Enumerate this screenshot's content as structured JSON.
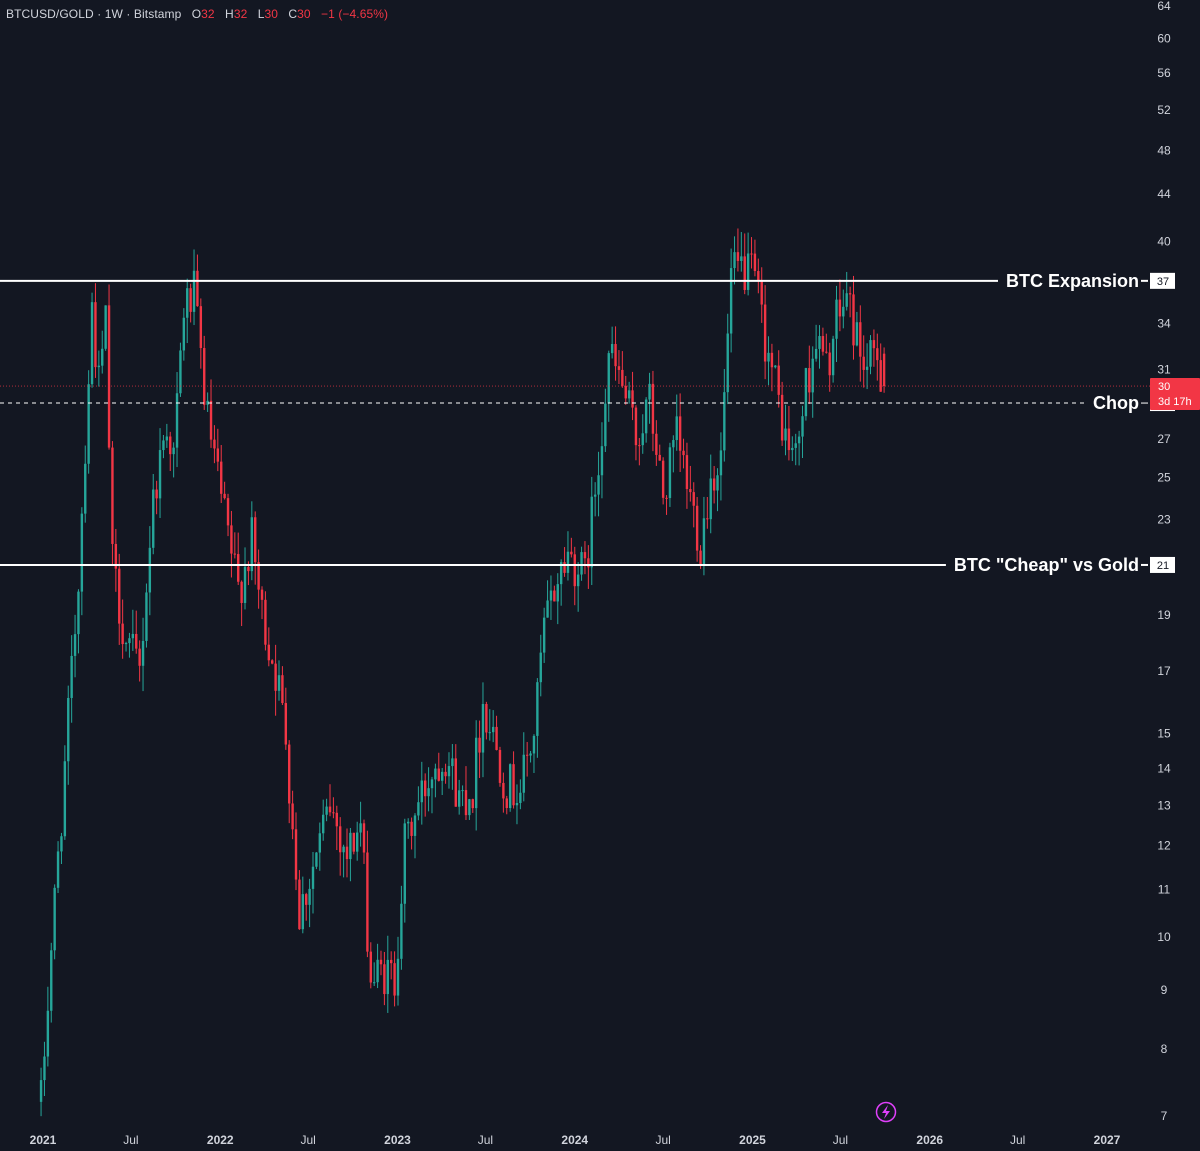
{
  "header": {
    "symbol": "BTCUSD/GOLD",
    "interval": "1W",
    "exchange": "Bitstamp",
    "open_label": "O",
    "open_value": "32",
    "high_label": "H",
    "high_value": "32",
    "low_label": "L",
    "low_value": "30",
    "close_label": "C",
    "close_value": "30",
    "change": "−1 (−4.65%)"
  },
  "colors": {
    "background": "#131722",
    "up": "#26a69a",
    "down": "#f23645",
    "text": "#d1d4dc",
    "level_line": "#ffffff",
    "price_line": "#f23645"
  },
  "chart_data": {
    "type": "candlestick",
    "timeframe": "1W",
    "y_scale": "log",
    "ylim": [
      7,
      64
    ],
    "y_ticks": [
      7,
      8,
      9,
      10,
      11,
      12,
      13,
      14,
      15,
      17,
      19,
      23,
      25,
      27,
      31,
      34,
      40,
      44,
      48,
      52,
      56,
      60,
      64
    ],
    "x_ticks": [
      {
        "label": "2021",
        "date": "2021-01-01"
      },
      {
        "label": "Jul",
        "date": "2021-07-01"
      },
      {
        "label": "2022",
        "date": "2022-01-01"
      },
      {
        "label": "Jul",
        "date": "2022-07-01"
      },
      {
        "label": "2023",
        "date": "2023-01-01"
      },
      {
        "label": "Jul",
        "date": "2023-07-01"
      },
      {
        "label": "2024",
        "date": "2024-01-01"
      },
      {
        "label": "Jul",
        "date": "2024-07-01"
      },
      {
        "label": "2025",
        "date": "2025-01-01"
      },
      {
        "label": "Jul",
        "date": "2025-07-01"
      },
      {
        "label": "2026",
        "date": "2026-01-01"
      },
      {
        "label": "Jul",
        "date": "2026-07-01"
      },
      {
        "label": "2027",
        "date": "2027-01-01"
      }
    ],
    "levels": [
      {
        "name": "BTC Expansion",
        "value": 37,
        "value_label": "37",
        "style": "solid"
      },
      {
        "name": "Chop",
        "value": 29,
        "value_label": "29",
        "style": "dashed"
      },
      {
        "name": "BTC \"Cheap\" vs Gold",
        "value": 21,
        "value_label": "21",
        "style": "solid"
      }
    ],
    "last_price": {
      "value": 30,
      "value_label": "30",
      "countdown": "3d 17h"
    },
    "close_path": [
      [
        "2020-12-28",
        7.2
      ],
      [
        "2021-01-18",
        9.8
      ],
      [
        "2021-02-15",
        14
      ],
      [
        "2021-03-15",
        20.5
      ],
      [
        "2021-04-12",
        35
      ],
      [
        "2021-04-26",
        30
      ],
      [
        "2021-05-10",
        34
      ],
      [
        "2021-05-24",
        21
      ],
      [
        "2021-06-21",
        18
      ],
      [
        "2021-07-19",
        17
      ],
      [
        "2021-08-16",
        24
      ],
      [
        "2021-09-13",
        28
      ],
      [
        "2021-09-27",
        26
      ],
      [
        "2021-10-18",
        35
      ],
      [
        "2021-11-08",
        36
      ],
      [
        "2021-12-06",
        28
      ],
      [
        "2022-01-10",
        23
      ],
      [
        "2022-02-07",
        20
      ],
      [
        "2022-03-07",
        22
      ],
      [
        "2022-03-28",
        19
      ],
      [
        "2022-04-25",
        17
      ],
      [
        "2022-05-16",
        15
      ],
      [
        "2022-06-13",
        10.5
      ],
      [
        "2022-07-11",
        11.5
      ],
      [
        "2022-08-15",
        13
      ],
      [
        "2022-09-19",
        11.8
      ],
      [
        "2022-10-17",
        12.5
      ],
      [
        "2022-11-07",
        9.2
      ],
      [
        "2022-12-05",
        9.3
      ],
      [
        "2022-12-26",
        9.2
      ],
      [
        "2023-01-16",
        12
      ],
      [
        "2023-02-13",
        13
      ],
      [
        "2023-03-13",
        14
      ],
      [
        "2023-04-10",
        14.5
      ],
      [
        "2023-05-08",
        13.2
      ],
      [
        "2023-06-05",
        13.5
      ],
      [
        "2023-06-26",
        16
      ],
      [
        "2023-07-17",
        15
      ],
      [
        "2023-08-14",
        13.5
      ],
      [
        "2023-09-11",
        13.5
      ],
      [
        "2023-10-09",
        15
      ],
      [
        "2023-10-30",
        18.5
      ],
      [
        "2023-11-27",
        20.5
      ],
      [
        "2023-12-18",
        21.5
      ],
      [
        "2024-01-22",
        20.5
      ],
      [
        "2024-02-19",
        26
      ],
      [
        "2024-03-11",
        32
      ],
      [
        "2024-04-08",
        30
      ],
      [
        "2024-05-06",
        27
      ],
      [
        "2024-06-03",
        29
      ],
      [
        "2024-07-01",
        24
      ],
      [
        "2024-07-29",
        27
      ],
      [
        "2024-08-26",
        24
      ],
      [
        "2024-09-16",
        22
      ],
      [
        "2024-10-07",
        25
      ],
      [
        "2024-10-28",
        26
      ],
      [
        "2024-11-18",
        37
      ],
      [
        "2024-12-09",
        38
      ],
      [
        "2025-01-06",
        37
      ],
      [
        "2025-01-27",
        33
      ],
      [
        "2025-02-17",
        30
      ],
      [
        "2025-03-10",
        27
      ],
      [
        "2025-03-31",
        26
      ],
      [
        "2025-04-21",
        30
      ],
      [
        "2025-05-12",
        33
      ],
      [
        "2025-06-02",
        31
      ],
      [
        "2025-06-23",
        34
      ],
      [
        "2025-07-14",
        36
      ],
      [
        "2025-08-04",
        33
      ],
      [
        "2025-08-25",
        31
      ],
      [
        "2025-09-15",
        32
      ],
      [
        "2025-09-29",
        30
      ]
    ]
  }
}
